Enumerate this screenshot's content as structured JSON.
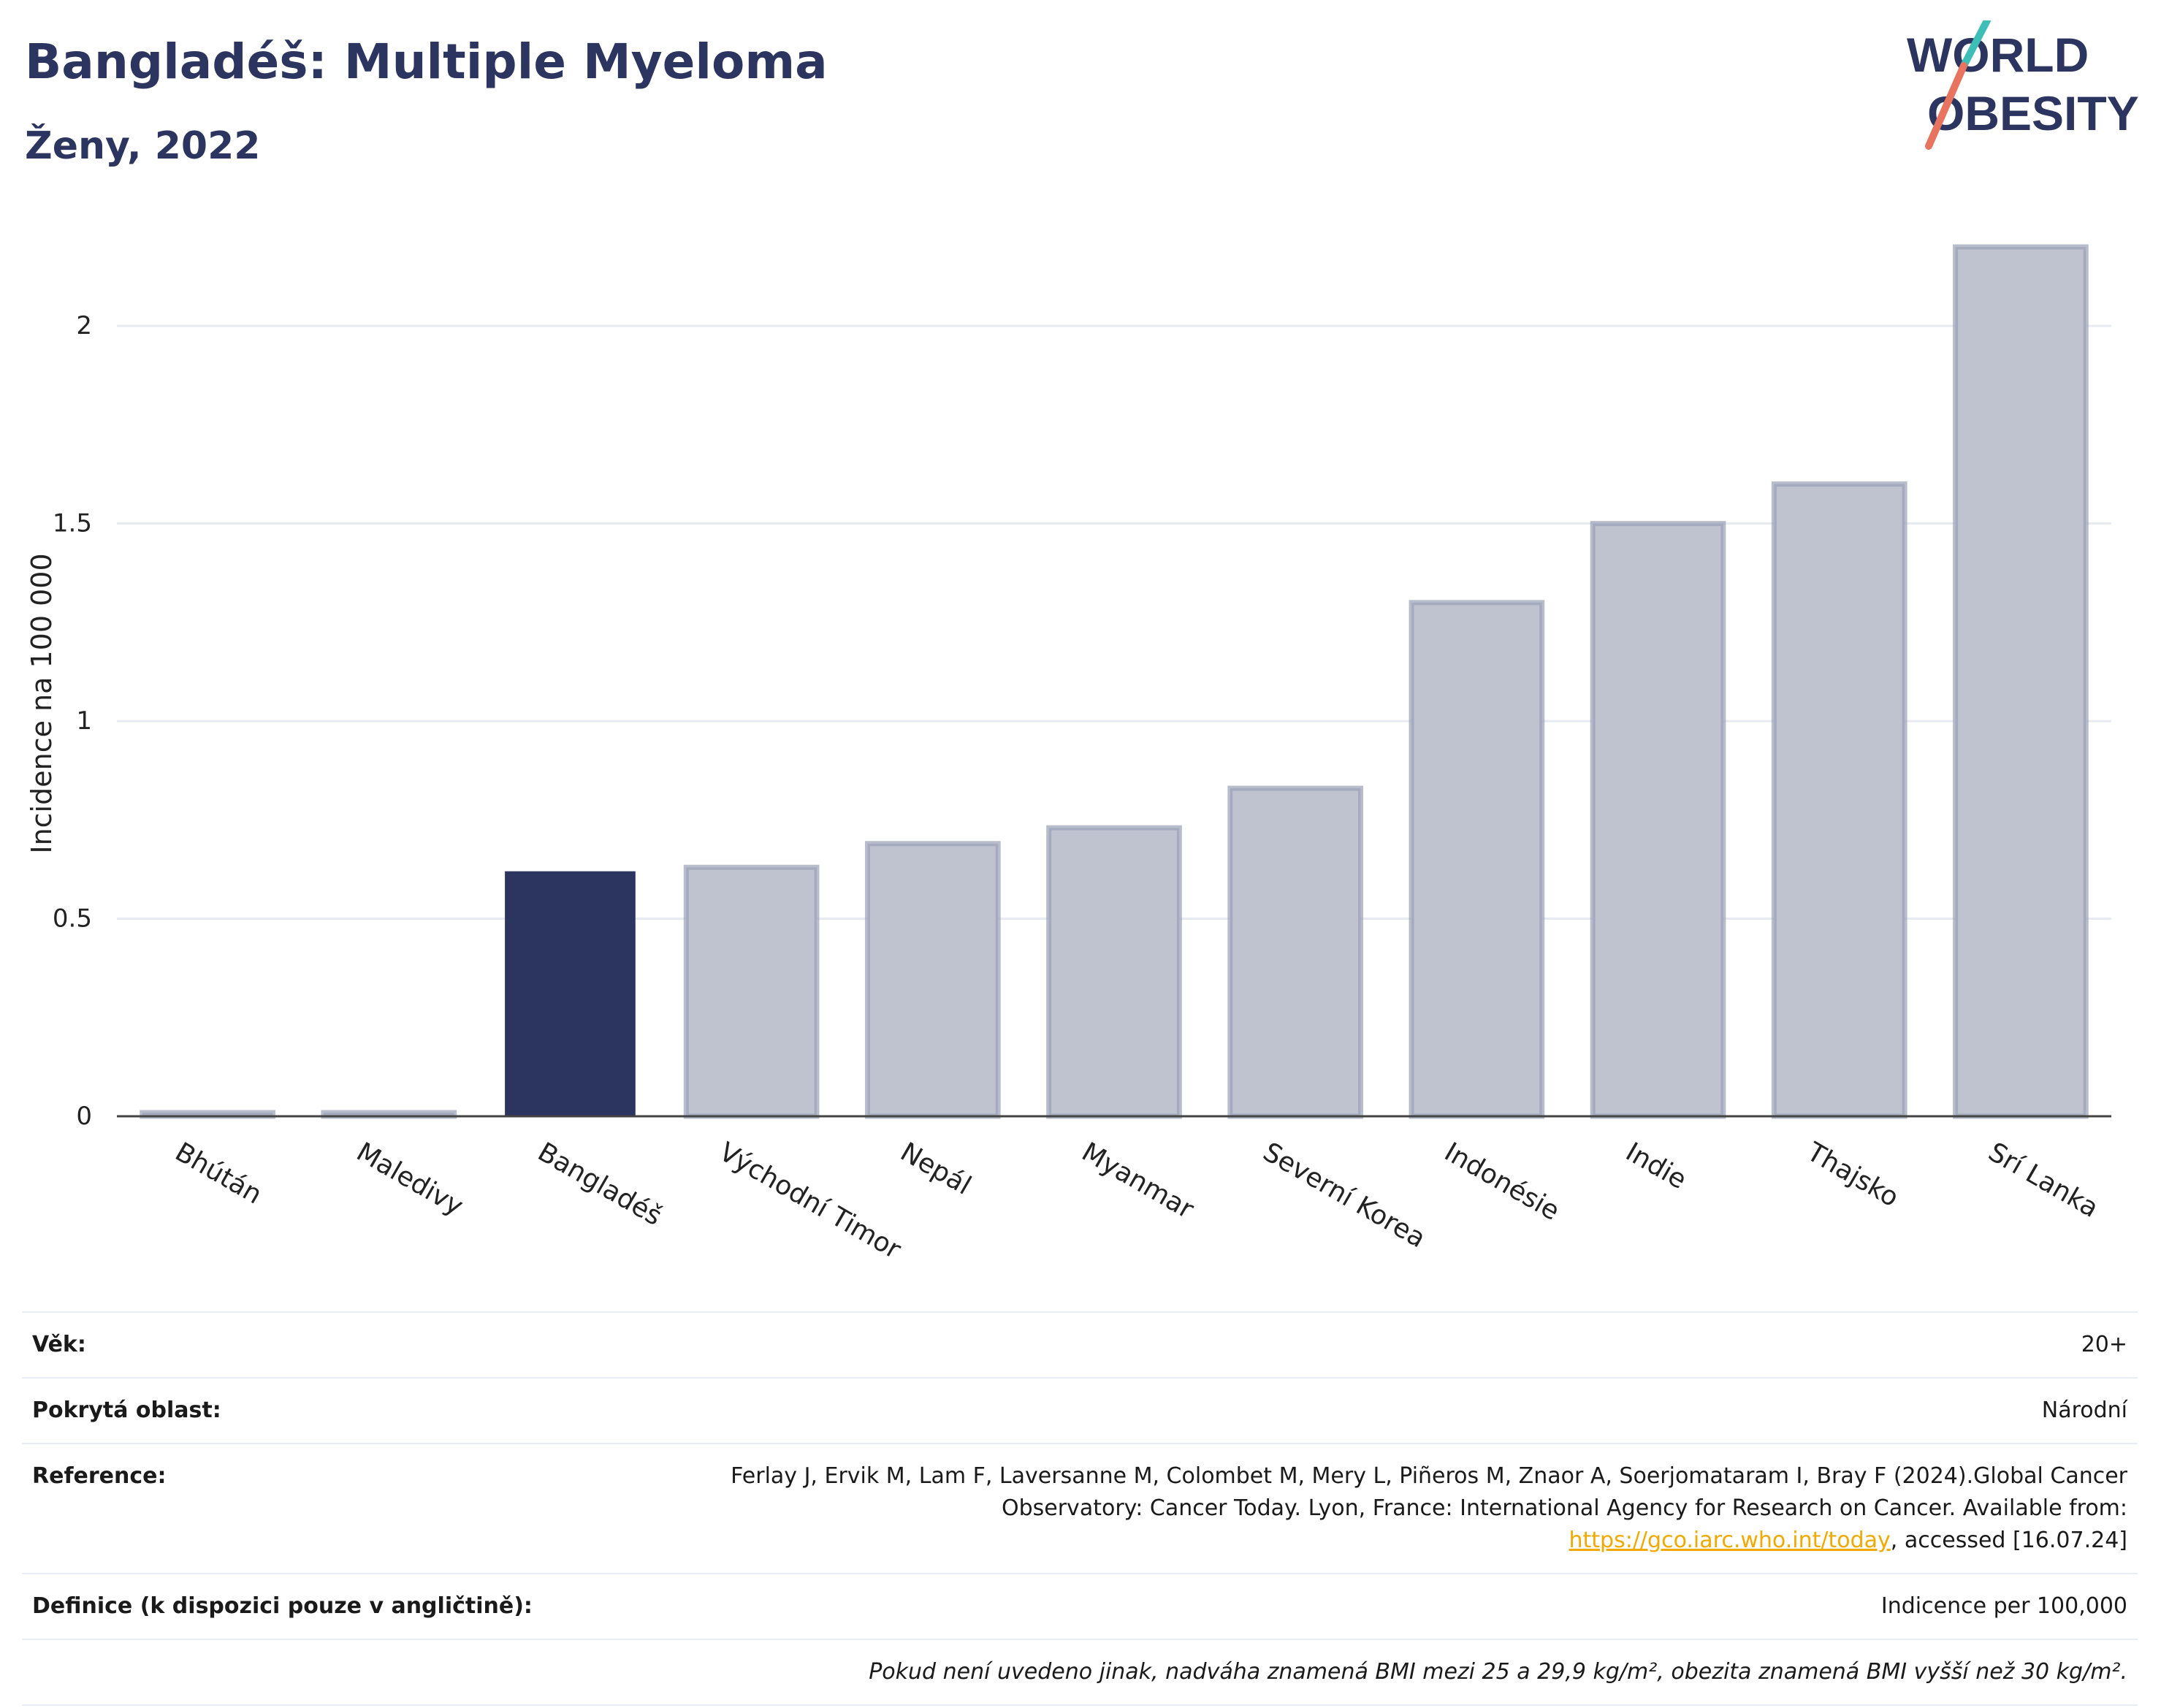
{
  "header": {
    "title": "Bangladéš: Multiple Myeloma",
    "subtitle": "Ženy, 2022"
  },
  "logo": {
    "line1": "WORLD",
    "line2": "OBESITY"
  },
  "colors": {
    "highlight": "#2b3560",
    "bar": "#bfc3cf",
    "bar_stroke": "#9aa1b6",
    "grid": "#e7eaf0",
    "text": "#2a3560",
    "logo_teal": "#3dbfb8",
    "logo_coral": "#e8735e"
  },
  "chart_data": {
    "type": "bar",
    "ylabel": "Incidence na 100 000",
    "ylim": [
      0,
      2.2
    ],
    "yticks": [
      0,
      0.5,
      1,
      1.5,
      2
    ],
    "ytick_labels": [
      "0",
      "0.5",
      "1",
      "1.5",
      "2"
    ],
    "grid": true,
    "categories": [
      "Bhútán",
      "Maledivy",
      "Bangladéš",
      "Východní Timor",
      "Nepál",
      "Myanmar",
      "Severní Korea",
      "Indonésie",
      "Indie",
      "Thajsko",
      "Srí Lanka"
    ],
    "values": [
      0.0,
      0.0,
      0.62,
      0.63,
      0.69,
      0.73,
      0.83,
      1.3,
      1.5,
      1.6,
      2.2
    ],
    "highlight_category": "Bangladéš"
  },
  "info": {
    "age_label": "Věk:",
    "age_value": "20+",
    "coverage_label": "Pokrytá oblast:",
    "coverage_value": "Národní",
    "reference_label": "Reference:",
    "reference_text": "Ferlay J, Ervik M, Lam F, Laversanne M, Colombet M, Mery L, Piñeros M, Znaor A, Soerjomataram I, Bray F (2024).Global Cancer Observatory: Cancer Today. Lyon, France: International Agency for Research on Cancer. Available from:",
    "reference_link": "https://gco.iarc.who.int/today",
    "reference_suffix": ", accessed [16.07.24]",
    "definition_label": "Definice (k dispozici pouze v angličtině):",
    "definition_value": "Indicence per 100,000",
    "note": "Pokud není uvedeno jinak, nadváha znamená BMI mezi 25 a 29,9 kg/m², obezita znamená BMI vyšší než 30 kg/m²."
  }
}
